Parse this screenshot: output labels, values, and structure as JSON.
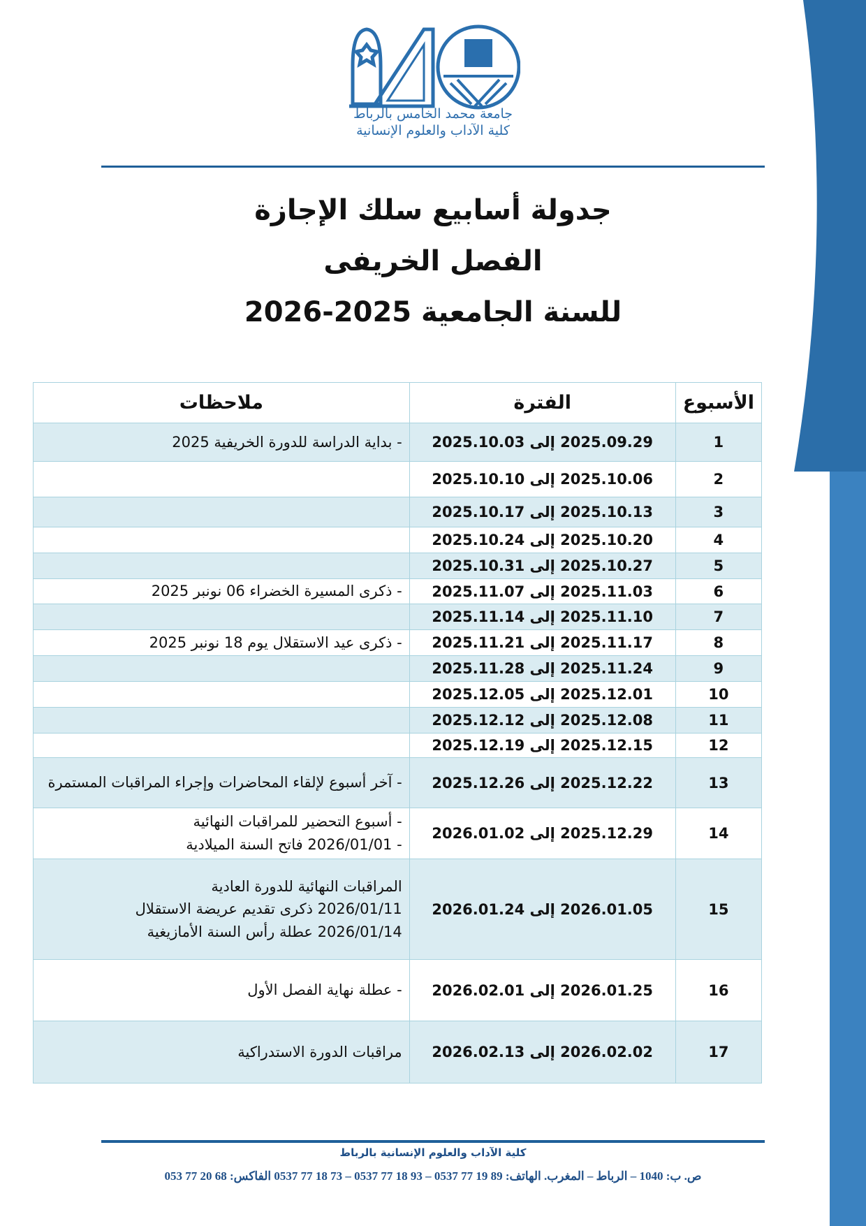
{
  "colors": {
    "brand_blue": "#2a6fae",
    "band_dark": "#2b6ea9",
    "band_light": "#3b82c0",
    "row_highlight": "#daecf2",
    "border": "#a9d3df"
  },
  "logo": {
    "line1": "جامعة محمد الخامس بالرباط",
    "line2": "كلية الآداب والعلوم الإنسانية"
  },
  "title": {
    "line1": "جدولة أسابيع سلك الإجازة",
    "line2": "الفصل الخريفى",
    "line3": "للسنة الجامعية 2025-2026"
  },
  "table": {
    "headers": {
      "week": "الأسبوع",
      "period": "الفترة",
      "notes": "ملاحظات"
    },
    "rows": [
      {
        "week": "1",
        "period": "2025.09.29 إلى 2025.10.03",
        "notes": [
          "- بداية الدراسة للدورة الخريفية 2025"
        ]
      },
      {
        "week": "2",
        "period": "2025.10.06 إلى 2025.10.10",
        "notes": []
      },
      {
        "week": "3",
        "period": "2025.10.13 إلى 2025.10.17",
        "notes": []
      },
      {
        "week": "4",
        "period": "2025.10.20 إلى 2025.10.24",
        "notes": []
      },
      {
        "week": "5",
        "period": "2025.10.27 إلى 2025.10.31",
        "notes": []
      },
      {
        "week": "6",
        "period": "2025.11.03 إلى 2025.11.07",
        "notes": [
          "- ذكرى المسيرة الخضراء 06 نونبر 2025"
        ]
      },
      {
        "week": "7",
        "period": "2025.11.10 إلى 2025.11.14",
        "notes": []
      },
      {
        "week": "8",
        "period": "2025.11.17 إلى 2025.11.21",
        "notes": [
          "- ذكرى عيد الاستقلال يوم 18 نونبر 2025"
        ]
      },
      {
        "week": "9",
        "period": "2025.11.24 إلى 2025.11.28",
        "notes": []
      },
      {
        "week": "10",
        "period": "2025.12.01 إلى 2025.12.05",
        "notes": []
      },
      {
        "week": "11",
        "period": "2025.12.08 إلى 2025.12.12",
        "notes": []
      },
      {
        "week": "12",
        "period": "2025.12.15 إلى 2025.12.19",
        "notes": []
      },
      {
        "week": "13",
        "period": "2025.12.22 إلى 2025.12.26",
        "notes": [
          "- آخر أسبوع لإلقاء المحاضرات وإجراء المراقبات المستمرة"
        ]
      },
      {
        "week": "14",
        "period": "2025.12.29 إلى 2026.01.02",
        "notes": [
          "- أسبوع التحضير  للمراقبات النهائية",
          "- 2026/01/01 فاتح السنة الميلادية"
        ]
      },
      {
        "week": "15",
        "period": "2026.01.05 إلى 2026.01.24",
        "notes": [
          "المراقبات النهائية للدورة العادية",
          "2026/01/11 ذكرى تقديم عريضة الاستقلال",
          "2026/01/14 عطلة رأس السنة الأمازيغية"
        ]
      },
      {
        "week": "16",
        "period": "2026.01.25 إلى 2026.02.01",
        "notes": [
          "- عطلة نهاية الفصل الأول"
        ]
      },
      {
        "week": "17",
        "period": "2026.02.02 إلى 2026.02.13",
        "notes": [
          "مراقبات الدورة الاستدراكية"
        ]
      }
    ]
  },
  "footer": {
    "institution": "كلية الآداب والعلوم الإنسانية بالرباط",
    "contact": "ص. ب: 1040 – الرباط – المغرب. الهاتف:  89 19 77 0537 – 93 18 77 0537 – 73 18 77 0537     الفاكس: 68 20 77 053"
  }
}
